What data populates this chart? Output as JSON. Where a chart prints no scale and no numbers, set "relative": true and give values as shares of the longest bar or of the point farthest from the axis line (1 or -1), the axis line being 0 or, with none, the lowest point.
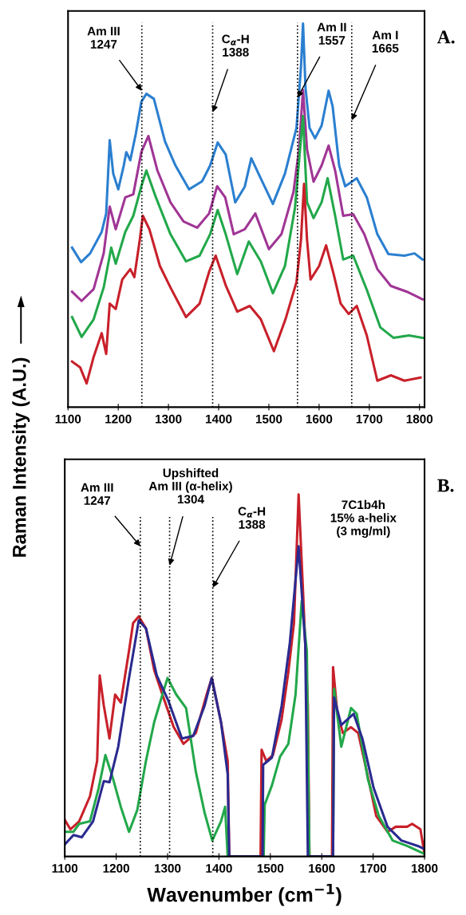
{
  "chart_data": [
    {
      "type": "line",
      "title": "A.",
      "ylabel": "Raman Intensity (A.U.)",
      "relative": true,
      "xlim": [
        1100,
        1810
      ],
      "xticks": [
        1100,
        1200,
        1300,
        1400,
        1500,
        1600,
        1700,
        1800
      ],
      "tick_labels": "x",
      "grid": false,
      "legend": false,
      "series": [
        {
          "color": "#2b7fd0",
          "x": [
            1108,
            1126,
            1144,
            1167,
            1176,
            1183,
            1190,
            1200,
            1211,
            1216,
            1224,
            1235,
            1246,
            1256,
            1271,
            1293,
            1314,
            1341,
            1367,
            1383,
            1398,
            1414,
            1433,
            1452,
            1465,
            1484,
            1508,
            1532,
            1555,
            1564,
            1568,
            1573,
            1581,
            1592,
            1605,
            1619,
            1627,
            1640,
            1652,
            1675,
            1695,
            1716,
            1738,
            1770,
            1790,
            1806
          ],
          "values": [
            0.416,
            0.378,
            0.401,
            0.457,
            0.505,
            0.696,
            0.609,
            0.568,
            0.63,
            0.665,
            0.644,
            0.713,
            0.796,
            0.817,
            0.804,
            0.693,
            0.63,
            0.568,
            0.589,
            0.63,
            0.69,
            0.659,
            0.534,
            0.575,
            0.649,
            0.596,
            0.53,
            0.609,
            0.728,
            0.888,
            1.0,
            0.832,
            0.728,
            0.701,
            0.734,
            0.825,
            0.784,
            0.63,
            0.576,
            0.597,
            0.547,
            0.451,
            0.399,
            0.395,
            0.401,
            0.385
          ]
        },
        {
          "color": "#a03595",
          "x": [
            1108,
            1127,
            1151,
            1171,
            1183,
            1195,
            1214,
            1230,
            1246,
            1260,
            1278,
            1304,
            1330,
            1357,
            1381,
            1397,
            1413,
            1430,
            1452,
            1473,
            1500,
            1525,
            1549,
            1560,
            1568,
            1576,
            1589,
            1605,
            1619,
            1632,
            1648,
            1668,
            1690,
            1716,
            1743,
            1775,
            1806
          ],
          "values": [
            0.301,
            0.277,
            0.308,
            0.401,
            0.523,
            0.464,
            0.547,
            0.555,
            0.665,
            0.707,
            0.617,
            0.534,
            0.484,
            0.468,
            0.505,
            0.576,
            0.547,
            0.451,
            0.464,
            0.505,
            0.412,
            0.451,
            0.561,
            0.672,
            0.827,
            0.672,
            0.588,
            0.63,
            0.682,
            0.617,
            0.499,
            0.503,
            0.451,
            0.36,
            0.316,
            0.301,
            0.281
          ]
        },
        {
          "color": "#22a84a",
          "x": [
            1108,
            1127,
            1151,
            1171,
            1186,
            1195,
            1214,
            1230,
            1246,
            1256,
            1275,
            1304,
            1335,
            1362,
            1383,
            1398,
            1414,
            1437,
            1460,
            1484,
            1508,
            1532,
            1552,
            1564,
            1568,
            1576,
            1589,
            1605,
            1617,
            1632,
            1648,
            1668,
            1695,
            1722,
            1748,
            1779,
            1806
          ],
          "values": [
            0.235,
            0.183,
            0.229,
            0.312,
            0.416,
            0.374,
            0.457,
            0.499,
            0.576,
            0.617,
            0.547,
            0.451,
            0.38,
            0.395,
            0.451,
            0.514,
            0.451,
            0.347,
            0.432,
            0.38,
            0.297,
            0.368,
            0.52,
            0.701,
            0.759,
            0.534,
            0.493,
            0.534,
            0.597,
            0.499,
            0.385,
            0.395,
            0.306,
            0.208,
            0.181,
            0.187,
            0.181
          ]
        },
        {
          "color": "#c8202a",
          "x": [
            1108,
            1124,
            1137,
            1151,
            1167,
            1176,
            1183,
            1195,
            1208,
            1224,
            1232,
            1243,
            1249,
            1262,
            1283,
            1304,
            1335,
            1362,
            1381,
            1394,
            1414,
            1437,
            1462,
            1484,
            1510,
            1533,
            1555,
            1564,
            1570,
            1576,
            1583,
            1600,
            1614,
            1629,
            1643,
            1659,
            1675,
            1695,
            1716,
            1743,
            1770,
            1802
          ],
          "values": [
            0.119,
            0.104,
            0.062,
            0.131,
            0.193,
            0.139,
            0.27,
            0.256,
            0.333,
            0.36,
            0.339,
            0.437,
            0.499,
            0.464,
            0.368,
            0.312,
            0.235,
            0.27,
            0.353,
            0.395,
            0.318,
            0.249,
            0.264,
            0.229,
            0.146,
            0.229,
            0.326,
            0.437,
            0.582,
            0.437,
            0.333,
            0.368,
            0.422,
            0.347,
            0.27,
            0.243,
            0.264,
            0.187,
            0.069,
            0.083,
            0.069,
            0.077
          ]
        }
      ],
      "ref_lines": [
        {
          "axis": "x",
          "value": 1247,
          "color": "#000000",
          "line_style": "dotted"
        },
        {
          "axis": "x",
          "value": 1388,
          "color": "#000000",
          "line_style": "dotted"
        },
        {
          "axis": "x",
          "value": 1557,
          "color": "#000000",
          "line_style": "dotted"
        },
        {
          "axis": "x",
          "value": 1665,
          "color": "#000000",
          "line_style": "dotted"
        }
      ],
      "annotations": [
        {
          "text": "Am III\n1247",
          "x": 1247,
          "y": 0.825
        },
        {
          "text": "C$_{α}$-H\n1388",
          "x": 1388,
          "y": 0.769
        },
        {
          "text": "Am II\n1557",
          "x": 1557,
          "y": 0.807
        },
        {
          "text": "Am I\n1665",
          "x": 1665,
          "y": 0.748
        }
      ]
    },
    {
      "type": "line",
      "title": "B.",
      "xlabel": "Wavenumber (cm$^{−1}$)",
      "relative": true,
      "xlim": [
        1100,
        1800
      ],
      "xticks": [
        1100,
        1200,
        1300,
        1400,
        1500,
        1600,
        1700,
        1800
      ],
      "tick_labels": "x",
      "grid": false,
      "legend": false,
      "series": [
        {
          "color": "#c8202a",
          "x": [
            1100,
            1111,
            1128,
            1149,
            1163,
            1168,
            1176,
            1187,
            1198,
            1209,
            1225,
            1233,
            1244,
            1258,
            1274,
            1290,
            1312,
            1331,
            1355,
            1376,
            1386,
            1404,
            1417,
            1420,
            1481,
            1483,
            1492,
            1505,
            1522,
            1535,
            1546,
            1555,
            1564,
            1573,
            1576,
            1620,
            1622,
            1630,
            1641,
            1657,
            1671,
            1690,
            1706,
            1728,
            1744,
            1766,
            1776,
            1792,
            1800
          ],
          "values": [
            0.101,
            0.075,
            0.097,
            0.166,
            0.264,
            0.5,
            0.416,
            0.326,
            0.447,
            0.425,
            0.568,
            0.645,
            0.663,
            0.63,
            0.515,
            0.447,
            0.357,
            0.311,
            0.341,
            0.447,
            0.493,
            0.371,
            0.264,
            0,
            0,
            0.295,
            0.264,
            0.28,
            0.379,
            0.509,
            0.645,
            1.0,
            0.72,
            0.416,
            0,
            0,
            0.523,
            0.402,
            0.341,
            0.357,
            0.341,
            0.219,
            0.112,
            0.068,
            0.082,
            0.082,
            0.09,
            0.075,
            0.007
          ]
        },
        {
          "color": "#22a84a",
          "x": [
            1100,
            1117,
            1128,
            1149,
            1166,
            1179,
            1193,
            1209,
            1225,
            1241,
            1258,
            1274,
            1290,
            1300,
            1317,
            1336,
            1355,
            1372,
            1387,
            1404,
            1412,
            1417,
            1487,
            1489,
            1503,
            1519,
            1535,
            1549,
            1561,
            1571,
            1576,
            1622,
            1624,
            1638,
            1657,
            1668,
            1690,
            1711,
            1738,
            1766,
            1800
          ],
          "values": [
            0.068,
            0.068,
            0.09,
            0.097,
            0.189,
            0.28,
            0.219,
            0.137,
            0.068,
            0.128,
            0.264,
            0.371,
            0.447,
            0.493,
            0.447,
            0.41,
            0.234,
            0.121,
            0.044,
            0.097,
            0.137,
            0,
            0,
            0.143,
            0.196,
            0.276,
            0.311,
            0.447,
            0.705,
            0.568,
            0,
            0,
            0.463,
            0.303,
            0.41,
            0.394,
            0.212,
            0.112,
            0.044,
            0.029,
            0.007
          ]
        },
        {
          "color": "#2a2a90",
          "x": [
            1100,
            1117,
            1133,
            1155,
            1176,
            1187,
            1204,
            1225,
            1244,
            1258,
            1279,
            1301,
            1328,
            1350,
            1372,
            1386,
            1404,
            1417,
            1420,
            1485,
            1486,
            1503,
            1522,
            1538,
            1555,
            1568,
            1573,
            1622,
            1624,
            1638,
            1662,
            1679,
            1701,
            1728,
            1755,
            1787,
            1800
          ],
          "values": [
            0.033,
            0.059,
            0.053,
            0.097,
            0.208,
            0.205,
            0.303,
            0.493,
            0.652,
            0.63,
            0.5,
            0.432,
            0.326,
            0.333,
            0.416,
            0.493,
            0.371,
            0.227,
            0,
            0,
            0.253,
            0.273,
            0.416,
            0.591,
            0.857,
            0.584,
            0,
            0,
            0.439,
            0.363,
            0.394,
            0.326,
            0.189,
            0.082,
            0.044,
            0.029,
            0.02
          ]
        }
      ],
      "ref_lines": [
        {
          "axis": "x",
          "value": 1247,
          "color": "#000000",
          "line_style": "dotted"
        },
        {
          "axis": "x",
          "value": 1304,
          "color": "#000000",
          "line_style": "dotted"
        },
        {
          "axis": "x",
          "value": 1388,
          "color": "#000000",
          "line_style": "dotted"
        }
      ],
      "annotations": [
        {
          "text": "Am III\n1247",
          "x": 1247,
          "y": 0.857
        },
        {
          "text": "Upshifted\nAm III (α-helix)\n1304",
          "x": 1304,
          "y": 0.804
        },
        {
          "text": "C$_{α}$-H\n1388",
          "x": 1388,
          "y": 0.743
        },
        "7C1b4h\n15% a-helix\n(3 mg/ml)"
      ]
    }
  ]
}
